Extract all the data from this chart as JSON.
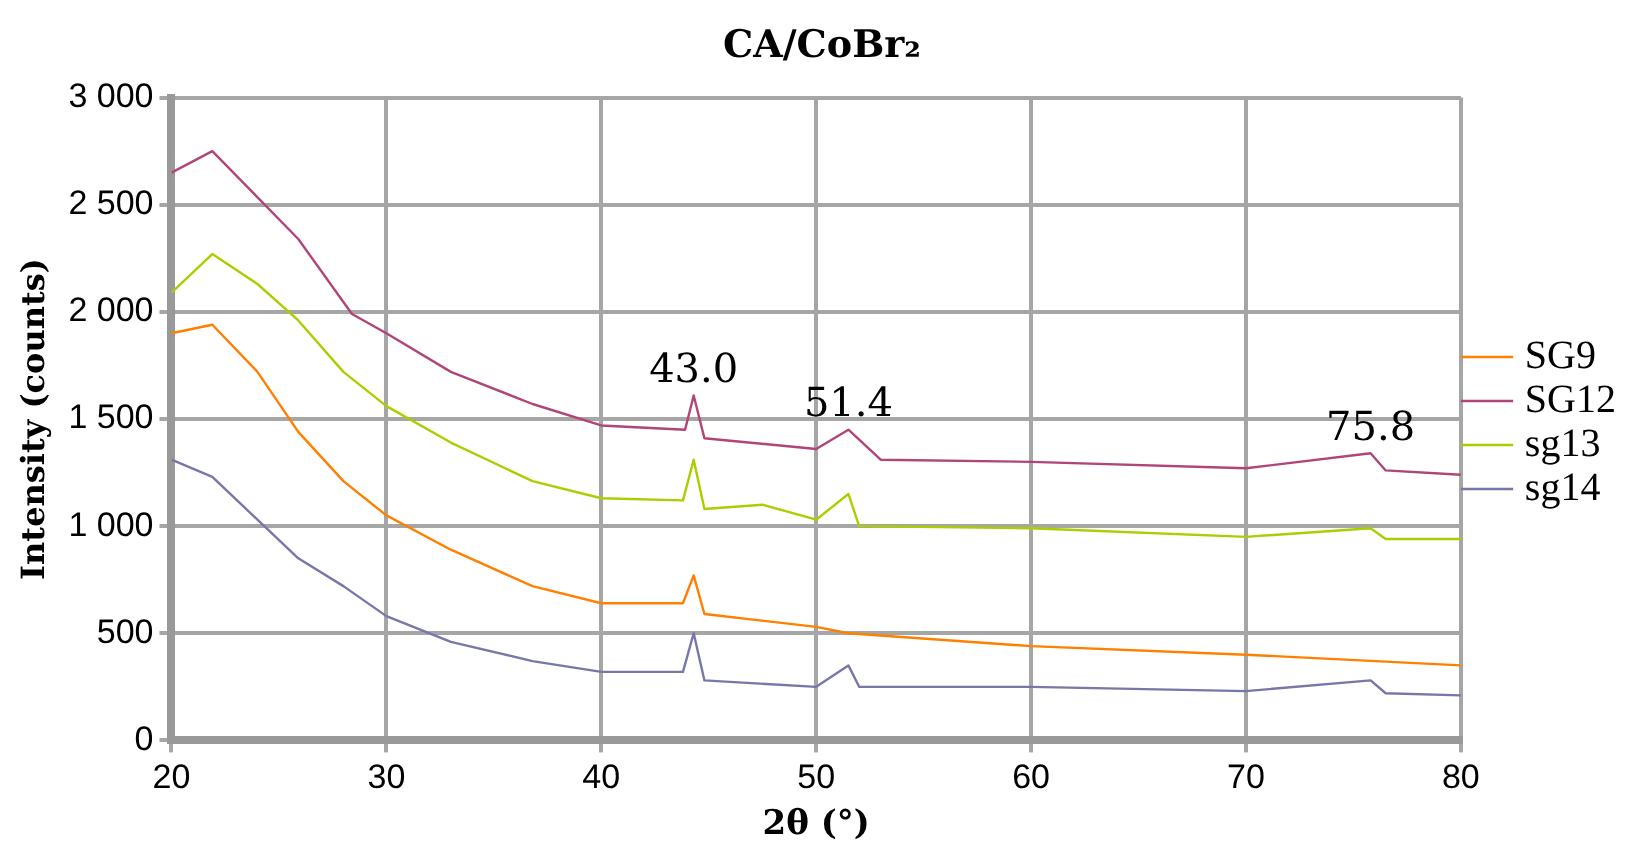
{
  "chart_data": {
    "type": "line",
    "title": "CA/CoBr₂",
    "xlabel": "2θ (°)",
    "ylabel": "Intensity (counts)",
    "xlim": [
      20,
      80
    ],
    "xticks": [
      20,
      30,
      40,
      50,
      60,
      70,
      80
    ],
    "ylim": [
      0,
      3000
    ],
    "yticks": [
      0,
      500,
      {
        "value": 1000,
        "label": "1 000"
      },
      {
        "value": 1500,
        "label": "1 500"
      },
      {
        "value": 2000,
        "label": "2 000"
      },
      {
        "value": 2500,
        "label": "2 500"
      },
      {
        "value": 3000,
        "label": "3 000"
      }
    ],
    "grid": true,
    "legend": "right",
    "marker": "none",
    "line_style": "solid",
    "series": [
      {
        "name": "SG9",
        "color": "#ff7f00",
        "x": [
          20,
          21.9,
          24,
          25.9,
          28,
          30,
          33,
          36.8,
          40,
          43.8,
          44.3,
          44.8,
          50,
          51.5,
          60,
          70,
          80
        ],
        "values": [
          1900,
          1940,
          1720,
          1440,
          1210,
          1050,
          890,
          720,
          640,
          640,
          770,
          590,
          530,
          500,
          440,
          400,
          350
        ]
      },
      {
        "name": "SG12",
        "color": "#b0457a",
        "x": [
          20,
          21.9,
          25.9,
          28.4,
          30,
          33,
          36.8,
          40,
          43.9,
          44.3,
          44.8,
          50,
          51.5,
          53,
          60,
          70,
          75.8,
          76.5,
          80
        ],
        "values": [
          2650,
          2750,
          2340,
          1990,
          1900,
          1720,
          1570,
          1470,
          1450,
          1610,
          1410,
          1360,
          1450,
          1310,
          1300,
          1270,
          1340,
          1260,
          1240
        ]
      },
      {
        "name": "sg13",
        "color": "#a8d000",
        "x": [
          20,
          21.9,
          24,
          25.9,
          28,
          30,
          33,
          36.8,
          40,
          43.8,
          44.3,
          44.8,
          47.5,
          50,
          51.5,
          52,
          60,
          70,
          75.8,
          76.5,
          80
        ],
        "values": [
          2090,
          2270,
          2130,
          1960,
          1720,
          1560,
          1390,
          1210,
          1130,
          1120,
          1310,
          1080,
          1100,
          1030,
          1150,
          1000,
          990,
          950,
          990,
          940,
          940
        ]
      },
      {
        "name": "sg14",
        "color": "#7777aa",
        "x": [
          20,
          21.9,
          24,
          25.9,
          28,
          30,
          33,
          36.8,
          40,
          43.8,
          44.3,
          44.8,
          50,
          51.5,
          52,
          60,
          70,
          75.8,
          76.5,
          80
        ],
        "values": [
          1310,
          1230,
          1030,
          850,
          720,
          580,
          460,
          370,
          320,
          320,
          500,
          280,
          250,
          350,
          250,
          250,
          230,
          280,
          220,
          210
        ]
      }
    ],
    "annotations": [
      {
        "text": "43.0",
        "x": 44.3,
        "y": 1610
      },
      {
        "text": "51.4",
        "x": 51.5,
        "y": 1450
      },
      {
        "text": "75.8",
        "x": 75.8,
        "y": 1340
      }
    ]
  }
}
